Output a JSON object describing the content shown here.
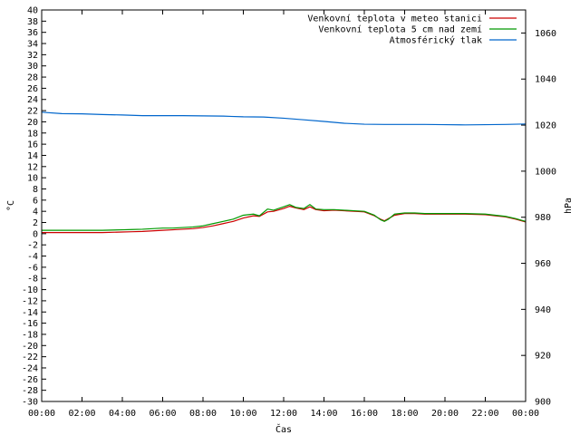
{
  "chart_data": {
    "type": "line",
    "title": "",
    "xlabel": "Čas",
    "ylabel_left": "°C",
    "ylabel_right": "hPa",
    "ylim_left": [
      -30,
      40
    ],
    "ylim_right": [
      900,
      1070
    ],
    "xlim_hours": [
      0,
      24
    ],
    "x_ticks": [
      "00:00",
      "02:00",
      "04:00",
      "06:00",
      "08:00",
      "10:00",
      "12:00",
      "14:00",
      "16:00",
      "18:00",
      "20:00",
      "22:00",
      "00:00"
    ],
    "y_left_ticks": [
      40,
      38,
      36,
      34,
      32,
      30,
      28,
      26,
      24,
      22,
      20,
      18,
      16,
      14,
      12,
      10,
      8,
      6,
      4,
      2,
      0,
      -2,
      -4,
      -6,
      -8,
      -10,
      -12,
      -14,
      -16,
      -18,
      -20,
      -22,
      -24,
      -26,
      -28,
      -30
    ],
    "y_right_ticks": [
      1060,
      1040,
      1020,
      1000,
      980,
      960,
      940,
      920,
      900
    ],
    "grid": false,
    "legend_position": "top-right",
    "series": [
      {
        "name": "Venkovní teplota v meteo stanici",
        "axis": "left",
        "color": "#cc0000",
        "x": [
          0,
          1,
          2,
          3,
          4,
          4.5,
          5,
          5.5,
          6,
          6.5,
          7,
          7.5,
          8,
          8.5,
          9,
          9.5,
          10,
          10.5,
          10.8,
          11.2,
          11.5,
          12,
          12.3,
          12.6,
          13,
          13.3,
          13.6,
          14,
          14.5,
          15,
          15.5,
          16,
          16.5,
          16.8,
          17,
          17.2,
          17.5,
          18,
          18.5,
          19,
          20,
          21,
          22,
          22.5,
          23,
          23.5,
          24
        ],
        "y": [
          0.2,
          0.2,
          0.2,
          0.2,
          0.3,
          0.35,
          0.4,
          0.5,
          0.6,
          0.7,
          0.8,
          0.9,
          1.1,
          1.4,
          1.8,
          2.2,
          2.8,
          3.2,
          3.1,
          3.9,
          4.0,
          4.5,
          4.9,
          4.6,
          4.3,
          4.8,
          4.3,
          4.1,
          4.2,
          4.1,
          4.0,
          3.9,
          3.2,
          2.6,
          2.3,
          2.7,
          3.3,
          3.6,
          3.6,
          3.5,
          3.5,
          3.5,
          3.4,
          3.2,
          3.0,
          2.6,
          2.1
        ]
      },
      {
        "name": "Venkovní teplota 5 cm nad zemí",
        "axis": "left",
        "color": "#009900",
        "x": [
          0,
          1,
          2,
          3,
          4,
          4.5,
          5,
          5.5,
          6,
          6.5,
          7,
          7.5,
          8,
          8.5,
          9,
          9.5,
          10,
          10.5,
          10.8,
          11.2,
          11.5,
          12,
          12.3,
          12.6,
          13,
          13.3,
          13.6,
          14,
          14.5,
          15,
          15.5,
          16,
          16.5,
          16.8,
          17,
          17.2,
          17.5,
          18,
          18.5,
          19,
          20,
          21,
          22,
          22.5,
          23,
          23.5,
          24
        ],
        "y": [
          0.6,
          0.6,
          0.6,
          0.6,
          0.7,
          0.75,
          0.8,
          0.9,
          1.0,
          1.0,
          1.1,
          1.2,
          1.4,
          1.8,
          2.2,
          2.6,
          3.3,
          3.5,
          3.2,
          4.4,
          4.2,
          4.8,
          5.2,
          4.7,
          4.5,
          5.2,
          4.4,
          4.3,
          4.3,
          4.2,
          4.1,
          4.0,
          3.3,
          2.5,
          2.2,
          2.6,
          3.5,
          3.7,
          3.7,
          3.6,
          3.6,
          3.6,
          3.5,
          3.3,
          3.1,
          2.7,
          2.2
        ]
      },
      {
        "name": "Atmosférický tlak",
        "axis": "right",
        "color": "#0066cc",
        "x": [
          0,
          1,
          2,
          3,
          4,
          5,
          6,
          7,
          8,
          9,
          10,
          11,
          12,
          13,
          14,
          15,
          16,
          17,
          18,
          19,
          20,
          21,
          22,
          23,
          24
        ],
        "y": [
          1025.6,
          1025.0,
          1024.9,
          1024.6,
          1024.4,
          1024.1,
          1024.1,
          1024.1,
          1024.0,
          1023.9,
          1023.6,
          1023.5,
          1023.0,
          1022.3,
          1021.6,
          1020.8,
          1020.4,
          1020.3,
          1020.3,
          1020.3,
          1020.2,
          1020.1,
          1020.2,
          1020.3,
          1020.5
        ]
      }
    ]
  }
}
